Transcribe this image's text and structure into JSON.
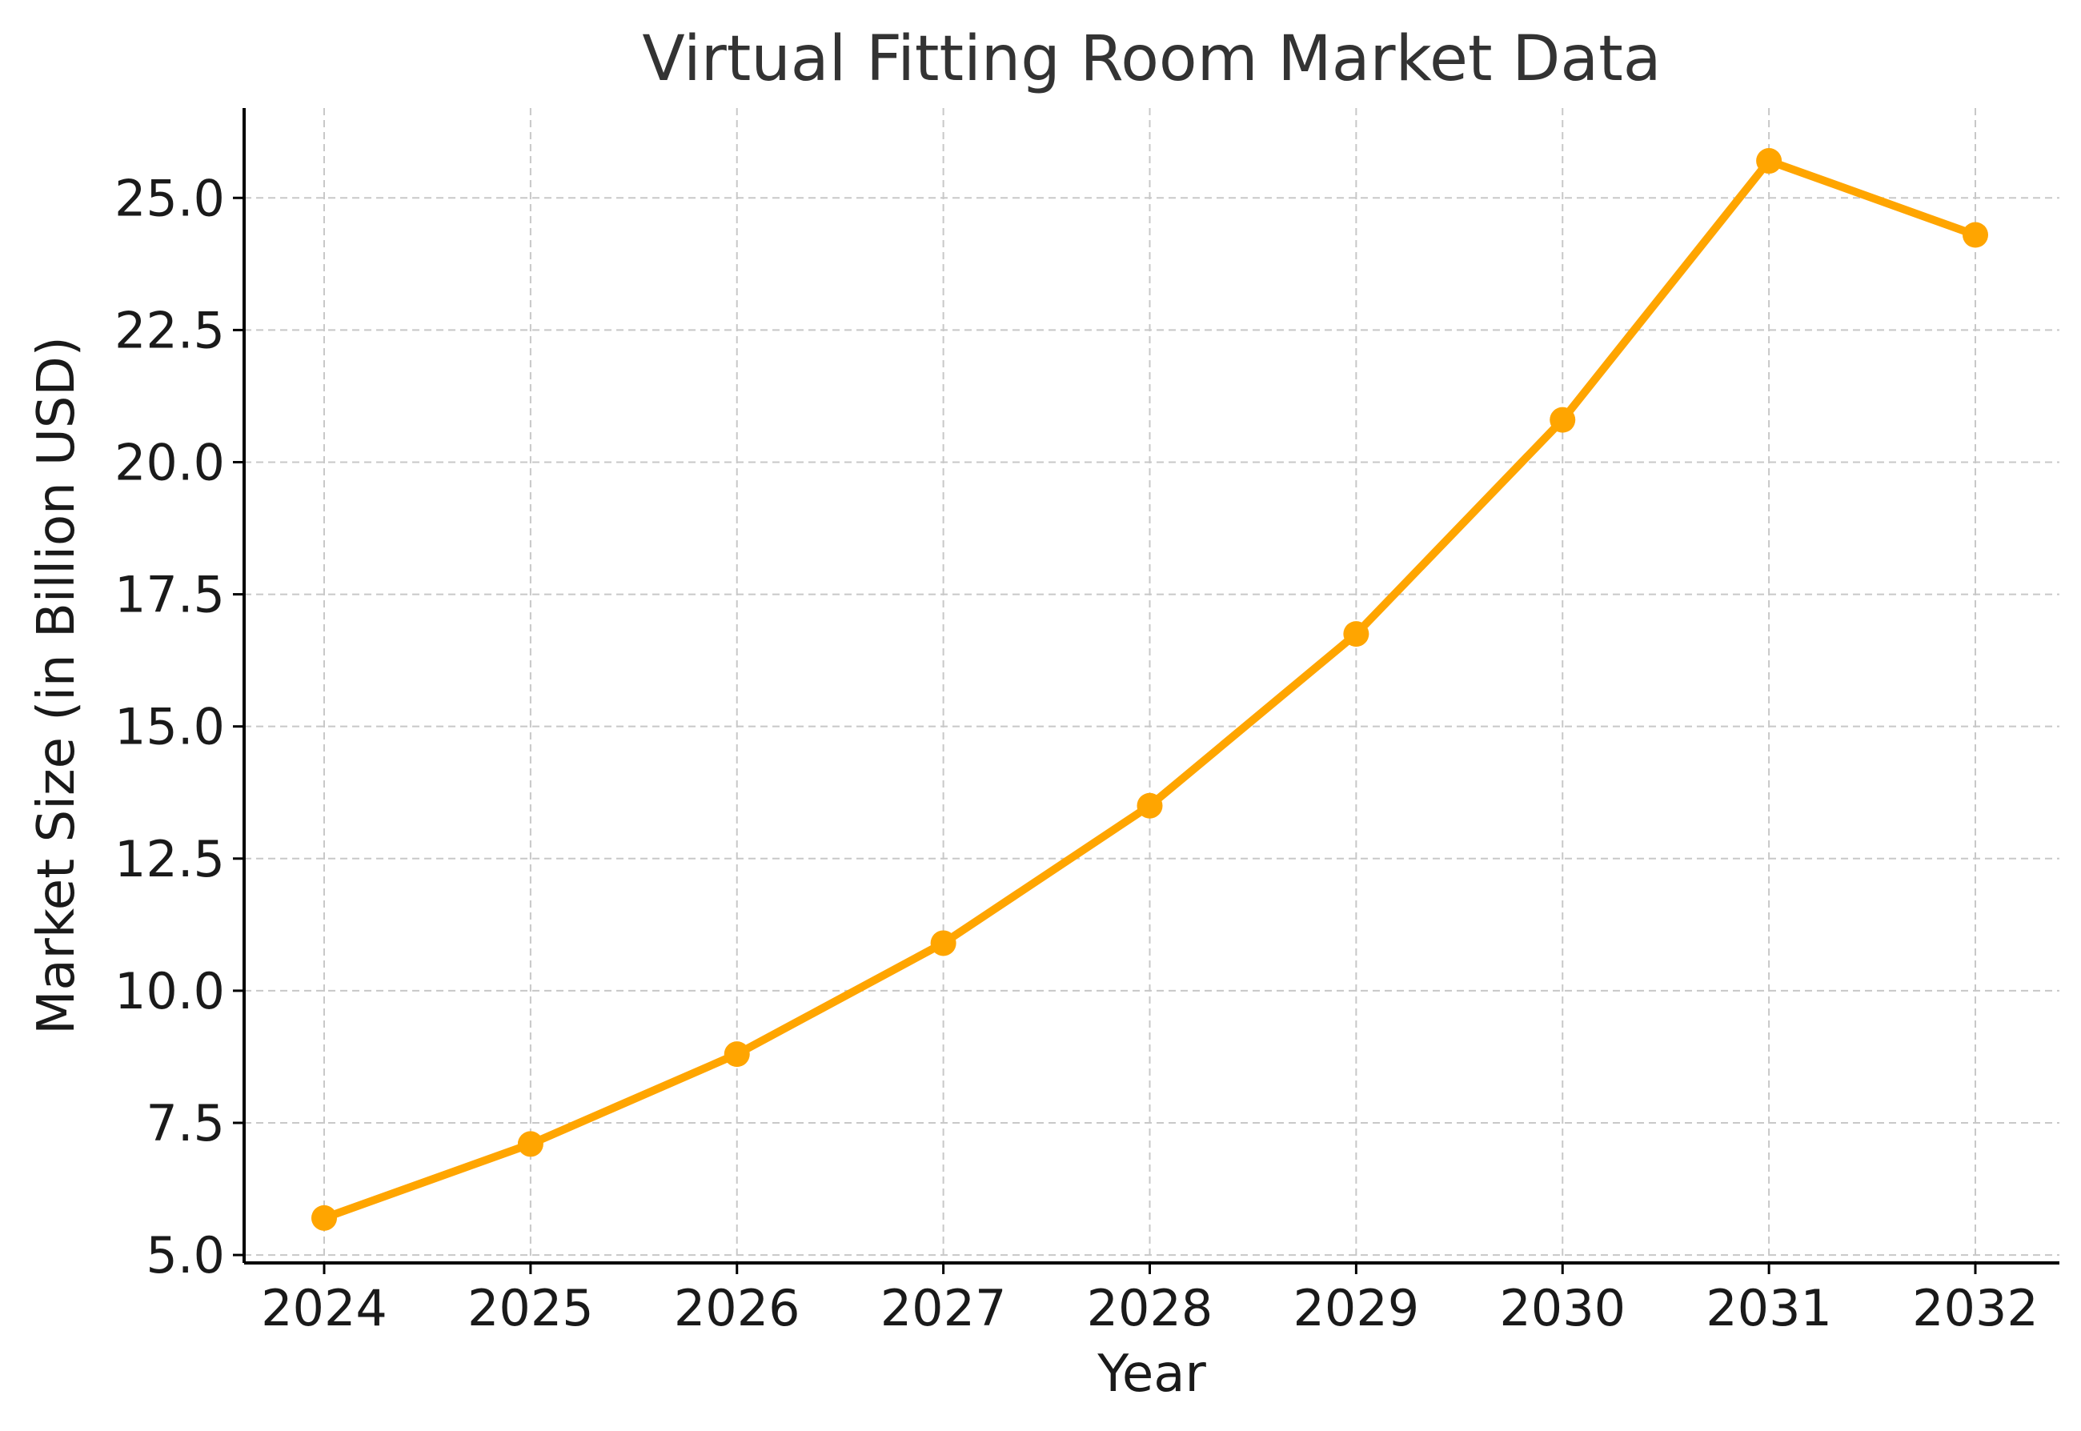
{
  "chart_data": {
    "type": "line",
    "title": "Virtual Fitting Room Market Data",
    "xlabel": "Year",
    "ylabel": "Market Size (in Billion USD)",
    "categories": [
      "2024",
      "2025",
      "2026",
      "2027",
      "2028",
      "2029",
      "2030",
      "2031",
      "2032"
    ],
    "series": [
      {
        "values": [
          5.7,
          7.1,
          8.8,
          10.9,
          13.5,
          16.75,
          20.8,
          25.7,
          24.3
        ],
        "color": "#FFA500"
      }
    ],
    "ylim": [
      4.85,
      26.7
    ],
    "yticks": [
      5.0,
      7.5,
      10.0,
      12.5,
      15.0,
      17.5,
      20.0,
      22.5,
      25.0
    ],
    "ytick_labels": [
      "5.0",
      "7.5",
      "10.0",
      "12.5",
      "15.0",
      "17.5",
      "20.0",
      "22.5",
      "25.0"
    ],
    "grid": true,
    "markers": true
  }
}
